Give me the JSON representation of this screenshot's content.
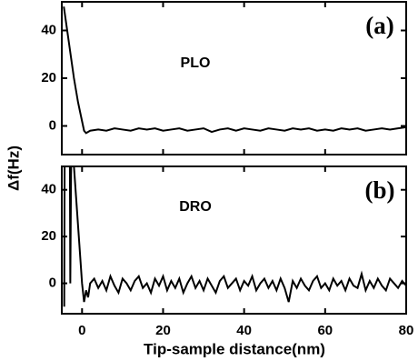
{
  "chart_data": [
    {
      "type": "line",
      "ylabel": "Δf(Hz)",
      "annotation": "(a)",
      "label": "PLO",
      "xlim": [
        -5,
        80
      ],
      "ylim": [
        -12,
        52
      ],
      "xticks": [
        0,
        20,
        40,
        60,
        80
      ],
      "yticks": [
        0,
        20,
        40
      ],
      "series": [
        {
          "color": "#000000",
          "x": [
            -4.5,
            -4,
            -3.5,
            -3,
            -2.5,
            -2,
            -1.5,
            -1,
            -0.5,
            0,
            0.5,
            1,
            2,
            4,
            6,
            8,
            10,
            12,
            14,
            16,
            18,
            20,
            22,
            24,
            26,
            28,
            30,
            32,
            34,
            36,
            38,
            40,
            42,
            44,
            46,
            48,
            50,
            52,
            54,
            56,
            58,
            60,
            62,
            64,
            66,
            68,
            70,
            72,
            74,
            76,
            78,
            80
          ],
          "values": [
            50,
            44,
            38,
            32,
            26,
            20,
            15,
            10,
            6,
            2,
            -2,
            -3,
            -2,
            -1.5,
            -2,
            -1,
            -1.5,
            -2,
            -1,
            -1.5,
            -1,
            -2,
            -1.5,
            -1,
            -2,
            -1.5,
            -1,
            -2.5,
            -1.5,
            -1,
            -2,
            -1,
            -1.5,
            -2,
            -1,
            -1.5,
            -2,
            -1,
            -1.5,
            -1,
            -2,
            -1.5,
            -2,
            -1,
            -1.5,
            -1,
            -2,
            -1.5,
            -1,
            -1.5,
            -1,
            -0.5
          ]
        }
      ]
    },
    {
      "type": "line",
      "xlabel": "Tip-sample distance(nm)",
      "annotation": "(b)",
      "label": "DRO",
      "xlim": [
        -5,
        80
      ],
      "ylim": [
        -13,
        50
      ],
      "xticks": [
        0,
        20,
        40,
        60,
        80
      ],
      "yticks": [
        0,
        20,
        40
      ],
      "series": [
        {
          "color": "#000000",
          "x": [
            -4.4,
            -4.3,
            -3,
            -2.9,
            -2.7,
            -2,
            -1,
            0,
            0.5,
            1,
            1.5,
            2,
            3,
            4,
            5,
            6,
            7,
            8,
            9,
            10,
            11,
            12,
            13,
            14,
            15,
            16,
            17,
            18,
            19,
            20,
            21,
            22,
            23,
            24,
            25,
            26,
            27,
            28,
            29,
            30,
            31,
            32,
            33,
            34,
            35,
            36,
            37,
            38,
            39,
            40,
            41,
            42,
            43,
            44,
            45,
            46,
            47,
            48,
            49,
            50,
            51,
            52,
            53,
            54,
            55,
            56,
            57,
            58,
            59,
            60,
            61,
            62,
            63,
            64,
            65,
            66,
            67,
            68,
            69,
            70,
            71,
            72,
            73,
            74,
            75,
            76,
            77,
            78,
            79,
            80
          ],
          "values": [
            -10,
            50,
            50,
            0,
            50,
            50,
            25,
            0,
            -8,
            -3,
            -6,
            0,
            2,
            -2,
            1,
            -3,
            3,
            -1,
            -4,
            2,
            0,
            -3,
            1,
            3,
            -2,
            0,
            -4,
            2,
            -1,
            3,
            -3,
            1,
            -2,
            2,
            -4,
            0,
            3,
            -2,
            1,
            -3,
            2,
            -1,
            -4,
            1,
            3,
            -2,
            0,
            2,
            -3,
            1,
            -1,
            3,
            -3,
            0,
            2,
            -2,
            1,
            -3,
            2,
            -2,
            -8,
            1,
            -2,
            2,
            -1,
            -3,
            1,
            3,
            -2,
            0,
            -3,
            2,
            -1,
            1,
            -3,
            2,
            -1,
            -2,
            4,
            -3,
            1,
            -2,
            2,
            -1,
            -3,
            2,
            0,
            -2,
            1,
            -1
          ]
        }
      ]
    }
  ]
}
